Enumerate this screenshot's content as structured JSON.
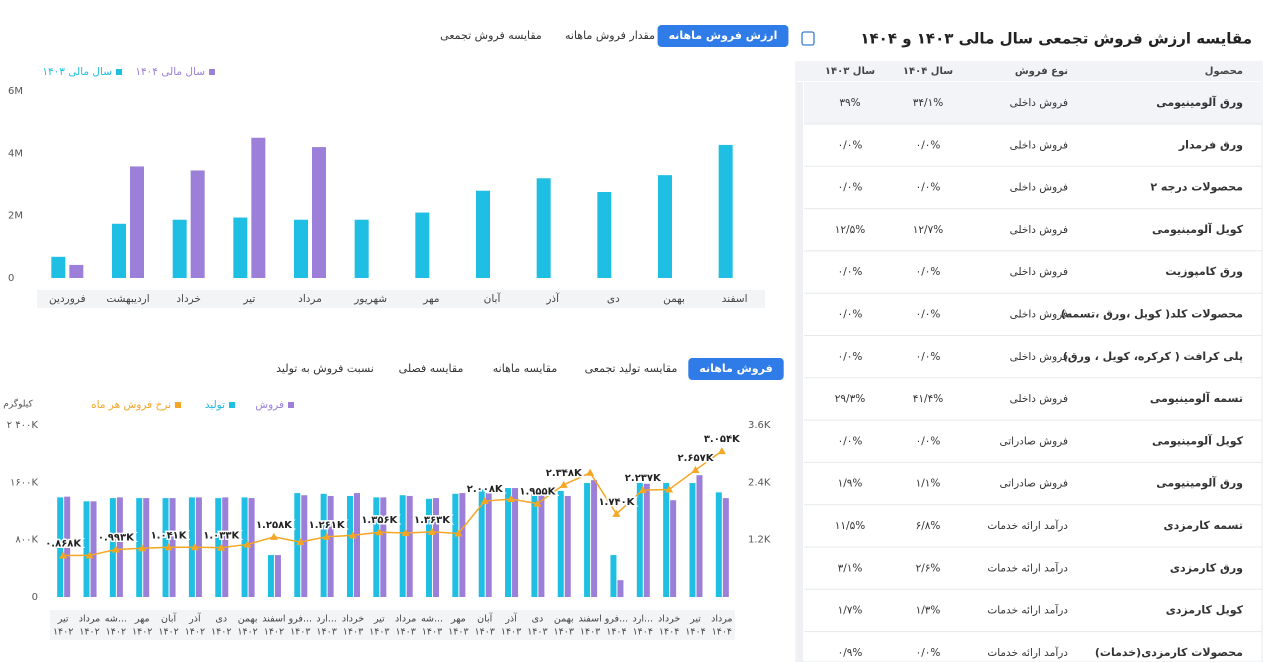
{
  "title": "مقایسه ارزش فروش تجمعی سال مالی ۱۴۰۳ و ۱۴۰۴",
  "table": {
    "headers": [
      "محصول",
      "نوع فروش",
      "سال ۱۴۰۴",
      "سال ۱۴۰۳"
    ],
    "rows": [
      [
        "ورق آلومینیومی",
        "فروش داخلی",
        "۳۴/۱%",
        "۳۹%"
      ],
      [
        "ورق فرمدار",
        "فروش داخلی",
        "۰/۰%",
        "۰/۰%"
      ],
      [
        "محصولات درجه ۲",
        "فروش داخلی",
        "۰/۰%",
        "۰/۰%"
      ],
      [
        "کویل آلومینیومی",
        "فروش داخلی",
        "۱۲/۷%",
        "۱۲/۵%"
      ],
      [
        "ورق کامپوزیت",
        "فروش داخلی",
        "۰/۰%",
        "۰/۰%"
      ],
      [
        "محصولات کلد( کویل ،ورق ،تسمه)",
        "فروش داخلی",
        "۰/۰%",
        "۰/۰%"
      ],
      [
        "پلی کرافت ( کرکره، کویل ، ورق)",
        "فروش داخلی",
        "۰/۰%",
        "۰/۰%"
      ],
      [
        "تسمه آلومینیومی",
        "فروش داخلی",
        "۴۱/۴%",
        "۲۹/۳%"
      ],
      [
        "کویل آلومینیومی",
        "فروش صادراتی",
        "۰/۰%",
        "۰/۰%"
      ],
      [
        "ورق آلومینیومی",
        "فروش صادراتی",
        "۱/۱%",
        "۱/۹%"
      ],
      [
        "تسمه کارمزدی",
        "درآمد ارائه خدمات",
        "۶/۸%",
        "۱۱/۵%"
      ],
      [
        "ورق کارمزدی",
        "درآمد ارائه خدمات",
        "۲/۶%",
        "۳/۱%"
      ],
      [
        "کویل کارمزدی",
        "درآمد ارائه خدمات",
        "۱/۳%",
        "۱/۷%"
      ],
      [
        "محصولات کارمزدی(خدمات)",
        "درآمد ارائه خدمات",
        "۰/۰%",
        "۰/۹%"
      ]
    ]
  },
  "top_tabs": {
    "items": [
      "ارزش فروش ماهانه",
      "مقدار فروش ماهانه",
      "مقایسه فروش تجمعی"
    ],
    "active": 0
  },
  "bottom_tabs": {
    "items": [
      "فروش ماهانه",
      "مقایسه تولید تجمعی",
      "مقایسه ماهانه",
      "مقایسه فصلی",
      "نسبت فروش به تولید"
    ],
    "active": 0
  },
  "chart_data": [
    {
      "type": "bar",
      "categories": [
        "فروردین",
        "اردیبهشت",
        "خرداد",
        "تیر",
        "مرداد",
        "شهریور",
        "مهر",
        "آبان",
        "آذر",
        "دی",
        "بهمن",
        "اسفند"
      ],
      "series": [
        {
          "name": "سال مالی ۱۴۰۳",
          "color": "#1fbfe3",
          "values": [
            680000,
            1740000,
            1870000,
            1940000,
            1870000,
            1870000,
            2100000,
            2800000,
            3200000,
            2760000,
            3300000,
            4270000
          ]
        },
        {
          "name": "سال مالی ۱۴۰۴",
          "color": "#9b7fd9",
          "values": [
            420000,
            3580000,
            3450000,
            4500000,
            4200000,
            null,
            null,
            null,
            null,
            null,
            null,
            null
          ]
        }
      ],
      "ylim": [
        0,
        6000000
      ],
      "yticks": [
        0,
        {
          "value": 2000000,
          "label": "2M"
        },
        {
          "value": 4000000,
          "label": "4M"
        },
        {
          "value": 6000000,
          "label": "6M"
        }
      ]
    },
    {
      "type": "bar",
      "ylabel": "کیلوگرم",
      "categories": [
        [
          "تیر",
          "۱۴۰۲"
        ],
        [
          "مرداد",
          "۱۴۰۲"
        ],
        [
          "شه...",
          "۱۴۰۲"
        ],
        [
          "مهر",
          "۱۴۰۲"
        ],
        [
          "آبان",
          "۱۴۰۲"
        ],
        [
          "آذر",
          "۱۴۰۲"
        ],
        [
          "دی",
          "۱۴۰۲"
        ],
        [
          "بهمن",
          "۱۴۰۲"
        ],
        [
          "اسفند",
          "۱۴۰۲"
        ],
        [
          "فرو...",
          "۱۴۰۳"
        ],
        [
          "ارد...",
          "۱۴۰۳"
        ],
        [
          "خرداد",
          "۱۴۰۳"
        ],
        [
          "تیر",
          "۱۴۰۳"
        ],
        [
          "مرداد",
          "۱۴۰۳"
        ],
        [
          "شه...",
          "۱۴۰۳"
        ],
        [
          "مهر",
          "۱۴۰۳"
        ],
        [
          "آبان",
          "۱۴۰۳"
        ],
        [
          "آذر",
          "۱۴۰۳"
        ],
        [
          "دی",
          "۱۴۰۳"
        ],
        [
          "بهمن",
          "۱۴۰۳"
        ],
        [
          "اسفند",
          "۱۴۰۳"
        ],
        [
          "فرو...",
          "۱۴۰۴"
        ],
        [
          "ارد...",
          "۱۴۰۴"
        ],
        [
          "خرداد",
          "۱۴۰۴"
        ],
        [
          "تیر",
          "۱۴۰۴"
        ],
        [
          "مرداد",
          "۱۴۰۴"
        ]
      ],
      "series": [
        {
          "name": "تولید",
          "color": "#1fbfe3",
          "values": [
            1390000,
            1335000,
            1380000,
            1380000,
            1380000,
            1390000,
            1380000,
            1390000,
            585000,
            1450000,
            1440000,
            1410000,
            1390000,
            1420000,
            1370000,
            1440000,
            1500000,
            1520000,
            1480000,
            1480000,
            1590000,
            585000,
            1590000,
            1590000,
            1590000,
            1460000
          ]
        },
        {
          "name": "فروش",
          "color": "#9b7fd9",
          "values": [
            1400000,
            1335000,
            1390000,
            1380000,
            1380000,
            1390000,
            1390000,
            1380000,
            585000,
            1420000,
            1410000,
            1450000,
            1390000,
            1410000,
            1380000,
            1450000,
            1450000,
            1520000,
            1450000,
            1410000,
            1630000,
            235000,
            1580000,
            1350000,
            1700000,
            1380000
          ]
        },
        {
          "name": "نرخ فروش هر ماه",
          "color": "#f5a623",
          "type": "line",
          "axis": "y2",
          "values": [
            868,
            870,
            993,
            1020,
            1041,
            1040,
            1033,
            1100,
            1258,
            1150,
            1261,
            1290,
            1356,
            1340,
            1363,
            1330,
            2008,
            2050,
            1955,
            2348,
            2600,
            1740,
            2237,
            2250,
            2657,
            3054
          ],
          "value_labels": [
            "۰.۸۶۸K",
            null,
            "۰.۹۹۳K",
            null,
            "۱.۰۴۱K",
            null,
            "۱.۰۳۳K",
            null,
            "۱.۲۵۸K",
            null,
            "۱.۲۶۱K",
            null,
            "۱.۳۵۶K",
            null,
            "۱.۳۶۳K",
            null,
            "۲.۰۰۸K",
            null,
            "۱.۹۵۵K",
            "۲.۳۴۸K",
            null,
            "۱.۷۴۰K",
            "۲.۲۳۷K",
            null,
            "۲.۶۵۷K",
            "۳.۰۵۴K"
          ]
        }
      ],
      "ylim": [
        0,
        2400000
      ],
      "yticks": [
        0,
        {
          "value": 800000,
          "label": "۸۰۰K"
        },
        {
          "value": 1600000,
          "label": "۱۶۰۰K"
        },
        {
          "value": 2400000,
          "label": "۲ ۴۰۰K"
        }
      ],
      "y2lim": [
        0,
        3600
      ],
      "y2ticks": [
        {
          "value": 1200,
          "label": "1.2K"
        },
        {
          "value": 2400,
          "label": "2.4K"
        },
        {
          "value": 3600,
          "label": "3.6K"
        }
      ]
    }
  ]
}
